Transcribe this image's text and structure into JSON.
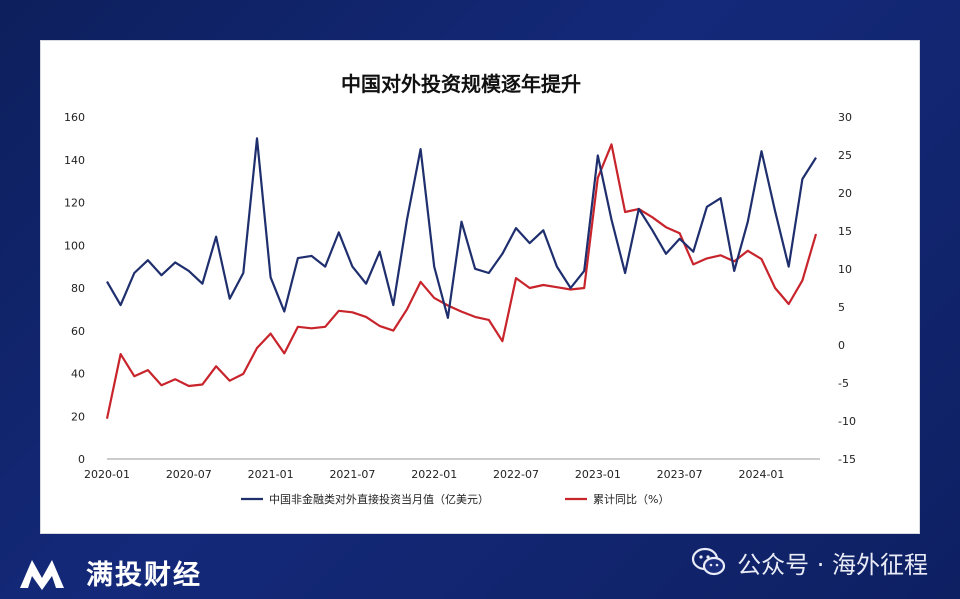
{
  "chart_data": {
    "type": "line",
    "title": "中国对外投资规模逐年提升",
    "x_tick_labels": [
      "2020-01",
      "2020-07",
      "2021-01",
      "2021-07",
      "2022-01",
      "2022-07",
      "2023-01",
      "2023-07",
      "2024-01"
    ],
    "y_left": {
      "ticks": [
        "0",
        "20",
        "40",
        "60",
        "80",
        "100",
        "120",
        "140",
        "160"
      ],
      "ylim": [
        0,
        160
      ]
    },
    "y_right": {
      "ticks": [
        "-15",
        "-10",
        "-5",
        "0",
        "5",
        "10",
        "15",
        "20",
        "25",
        "30"
      ],
      "ylim": [
        -15,
        30
      ]
    },
    "series": [
      {
        "name": "中国非金融类对外直接投资当月值（亿美元）",
        "axis": "left",
        "color": "#1f2f6e",
        "values": [
          83,
          72,
          87,
          93,
          86,
          92,
          88,
          82,
          104,
          75,
          87,
          150,
          85,
          69,
          94,
          95,
          90,
          106,
          90,
          82,
          97,
          72,
          112,
          145,
          90,
          66,
          111,
          89,
          87,
          96,
          108,
          101,
          107,
          90,
          80,
          88,
          142,
          112,
          87,
          117,
          107,
          96,
          103,
          97,
          118,
          122,
          88,
          111,
          144,
          116,
          90,
          131,
          141
        ]
      },
      {
        "name": "累计同比（%）",
        "axis": "right",
        "color": "#c8242c",
        "values": [
          -9.7,
          -1.2,
          -4.1,
          -3.3,
          -5.3,
          -4.5,
          -5.4,
          -5.2,
          -2.8,
          -4.7,
          -3.8,
          -0.4,
          1.5,
          -1.1,
          2.4,
          2.2,
          2.4,
          4.5,
          4.3,
          3.7,
          2.5,
          1.9,
          4.7,
          8.3,
          6.2,
          5.2,
          4.4,
          3.7,
          3.3,
          0.5,
          8.8,
          7.5,
          7.9,
          7.6,
          7.3,
          7.5,
          22.0,
          26.4,
          17.5,
          17.9,
          16.8,
          15.5,
          14.7,
          10.6,
          11.4,
          11.8,
          11.0,
          12.4,
          11.3,
          7.5,
          5.4,
          8.5,
          14.6
        ]
      }
    ],
    "legend": [
      "中国非金融类对外直接投资当月值（亿美元）",
      "累计同比（%）"
    ]
  },
  "brand": {
    "name": "满投财经"
  },
  "wechat": {
    "label": "公众号 · 海外征程"
  },
  "colors": {
    "navy": "#1f2f6e",
    "red": "#c8242c",
    "background": "#14297a"
  }
}
